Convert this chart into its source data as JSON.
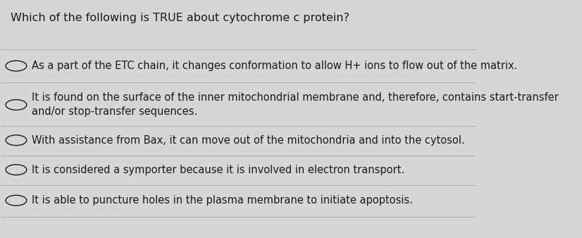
{
  "title": "Which of the following is TRUE about cytochrome c protein?",
  "options": [
    "As a part of the ETC chain, it changes conformation to allow H+ ions to flow out of the matrix.",
    "It is found on the surface of the inner mitochondrial membrane and, therefore, contains start-transfer\nand/or stop-transfer sequences.",
    "With assistance from Bax, it can move out of the mitochondria and into the cytosol.",
    "It is considered a symporter because it is involved in electron transport.",
    "It is able to puncture holes in the plasma membrane to initiate apoptosis."
  ],
  "background_color": "#d6d6d6",
  "text_color": "#1a1a1a",
  "title_fontsize": 11.5,
  "option_fontsize": 10.5,
  "circle_color": "#1a1a1a",
  "line_color": "#b0b0b0",
  "fig_width": 8.26,
  "fig_height": 3.38
}
